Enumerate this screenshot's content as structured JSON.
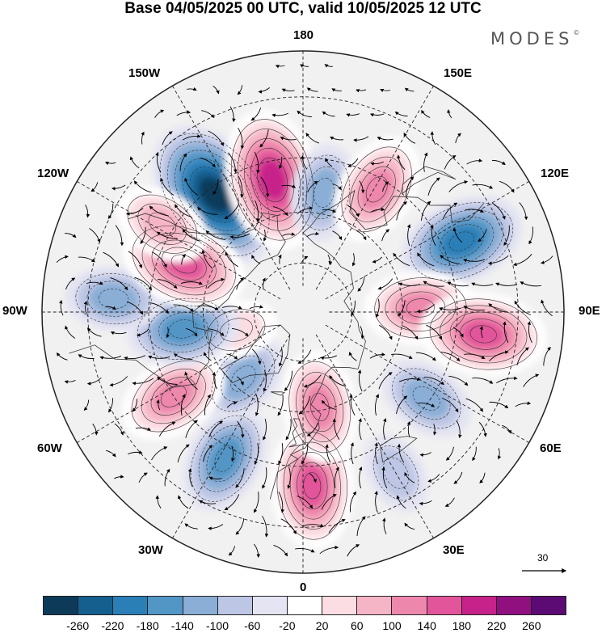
{
  "title": "Base 04/05/2025 00 UTC, valid 10/05/2025 12 UTC",
  "brand": "MODES",
  "brand_mark": "©",
  "longitude_labels": [
    {
      "id": "lon-180",
      "text": "180"
    },
    {
      "id": "lon-150e",
      "text": "150E"
    },
    {
      "id": "lon-120e",
      "text": "120E"
    },
    {
      "id": "lon-90e",
      "text": "90E"
    },
    {
      "id": "lon-60e",
      "text": "60E"
    },
    {
      "id": "lon-30e",
      "text": "30E"
    },
    {
      "id": "lon-0",
      "text": "0"
    },
    {
      "id": "lon-30w",
      "text": "30W"
    },
    {
      "id": "lon-60w",
      "text": "60W"
    },
    {
      "id": "lon-90w",
      "text": "90W"
    },
    {
      "id": "lon-120w",
      "text": "120W"
    },
    {
      "id": "lon-150w",
      "text": "150W"
    }
  ],
  "reference_vector": {
    "value": "30"
  },
  "colorbar": {
    "ticks": [
      "-260",
      "-220",
      "-180",
      "-140",
      "-100",
      "-60",
      "-20",
      "20",
      "60",
      "100",
      "140",
      "180",
      "220",
      "260"
    ],
    "colors": [
      "#0e3a5a",
      "#155f8f",
      "#2a7fb7",
      "#5296c6",
      "#8aaed6",
      "#bdc6e4",
      "#e4e4f2",
      "#ffffff",
      "#fbdde3",
      "#f6b5c6",
      "#ee87ac",
      "#e3559a",
      "#c7218a",
      "#911080",
      "#5c0a74"
    ]
  },
  "anomaly_centers": [
    {
      "sign": "negative",
      "level": -260,
      "lon": -143,
      "lat": 47
    },
    {
      "sign": "positive",
      "level": 220,
      "lon": -167,
      "lat": 50
    },
    {
      "sign": "negative",
      "level": -100,
      "lon": 170,
      "lat": 54
    },
    {
      "sign": "positive",
      "level": 140,
      "lon": 149,
      "lat": 48
    },
    {
      "sign": "negative",
      "level": -180,
      "lon": 114,
      "lat": 40
    },
    {
      "sign": "positive",
      "level": 140,
      "lon": 92,
      "lat": 55
    },
    {
      "sign": "positive",
      "level": 180,
      "lon": 83,
      "lat": 38
    },
    {
      "sign": "negative",
      "level": -100,
      "lon": 55,
      "lat": 46
    },
    {
      "sign": "negative",
      "level": -60,
      "lon": 30,
      "lat": 37
    },
    {
      "sign": "positive",
      "level": 180,
      "lon": 3,
      "lat": 40
    },
    {
      "sign": "positive",
      "level": 140,
      "lon": 10,
      "lat": 61
    },
    {
      "sign": "negative",
      "level": -140,
      "lon": -28,
      "lat": 42
    },
    {
      "sign": "negative",
      "level": -100,
      "lon": -42,
      "lat": 63
    },
    {
      "sign": "positive",
      "level": 140,
      "lon": -57,
      "lat": 45
    },
    {
      "sign": "positive",
      "level": 60,
      "lon": -75,
      "lat": 69
    },
    {
      "sign": "negative",
      "level": -140,
      "lon": -82,
      "lat": 54
    },
    {
      "sign": "negative",
      "level": -100,
      "lon": -94,
      "lat": 36
    },
    {
      "sign": "positive",
      "level": 180,
      "lon": -112,
      "lat": 52
    },
    {
      "sign": "positive",
      "level": 100,
      "lon": -122,
      "lat": 42
    }
  ]
}
